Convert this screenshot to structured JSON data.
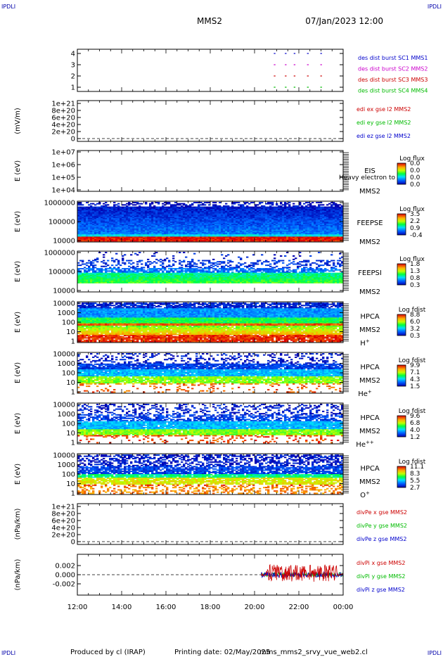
{
  "header": {
    "corner_left_top": "IPDLI",
    "corner_right_top": "IPDLI",
    "corner_left_bottom": "IPDLI",
    "corner_right_bottom": "IPDLI",
    "spacecraft": "MMS2",
    "datetime": "07/Jan/2023 12:00"
  },
  "footer": {
    "produced_by": "Produced by cl (IRAP)",
    "printing_date": "Printing date: 02/May/2025",
    "filename": "mms_mms2_srvy_vue_web2.cl"
  },
  "colors": {
    "blue": "#0000cc",
    "magenta": "#cc00cc",
    "red": "#cc0000",
    "green": "#00bb00"
  },
  "chart_data": {
    "type": "heatmap",
    "time_axis": {
      "range": [
        "12:00",
        "00:00"
      ],
      "tick_labels": [
        "12:00",
        "14:00",
        "16:00",
        "18:00",
        "20:00",
        "22:00",
        "00:00"
      ]
    },
    "panels": [
      {
        "id": "burst",
        "type": "scatter",
        "ylabel": "",
        "ylim": [
          0.5,
          4.5
        ],
        "tick_labels": [
          "4",
          "3",
          "2",
          "1"
        ],
        "legend": [
          {
            "name": "des dist burst SC1 MMS1",
            "color": "#0000cc"
          },
          {
            "name": "des dist burst SC2 MMS2",
            "color": "#cc00cc"
          },
          {
            "name": "des dist burst SC3 MMS3",
            "color": "#cc0000"
          },
          {
            "name": "des dist burst SC4 MMS4",
            "color": "#00bb00"
          }
        ],
        "burst_hours": [
          20.9,
          21.4,
          21.8,
          22.4,
          23.0
        ]
      },
      {
        "id": "edi",
        "type": "line",
        "ylabel": "(mV/m)",
        "ylim": [
          0,
          1e+21
        ],
        "tick_labels": [
          "1e+21",
          "8e+20",
          "6e+20",
          "4e+20",
          "2e+20",
          "0"
        ],
        "legend": [
          {
            "name": "edi ex gse l2 MMS2",
            "color": "#cc0000"
          },
          {
            "name": "edi ey gse l2 MMS2",
            "color": "#00bb00"
          },
          {
            "name": "edi ez gse l2 MMS2",
            "color": "#0000cc"
          }
        ]
      },
      {
        "id": "eis",
        "type": "heatmap",
        "ylabel": "E (eV)",
        "ylim": [
          10000.0,
          10000000.0
        ],
        "tick_labels": [
          "1e+07",
          "1e+06",
          "1e+05",
          "1e+04"
        ],
        "instrument": [
          "EIS",
          "MMS2"
        ],
        "species": "",
        "overlay_text": "Heavy electron to",
        "colorbar_title": "Log flux",
        "colorbar_ticks": [
          "0.0",
          "0.0",
          "0.0",
          "0.0"
        ]
      },
      {
        "id": "feepse",
        "type": "heatmap",
        "ylabel": "E (eV)",
        "ylim": [
          10000,
          1000000
        ],
        "tick_labels": [
          "1000000",
          "100000",
          "10000"
        ],
        "instrument": [
          "FEEPSE",
          "MMS2"
        ],
        "species": "",
        "colorbar_title": "Log flux",
        "colorbar_ticks": [
          "3.5",
          "2.2",
          "0.9",
          "-0.4"
        ]
      },
      {
        "id": "feepsi",
        "type": "heatmap",
        "ylabel": "E (eV)",
        "ylim": [
          10000,
          1000000
        ],
        "tick_labels": [
          "1000000",
          "100000",
          "10000"
        ],
        "instrument": [
          "FEEPSI",
          "MMS2"
        ],
        "species": "",
        "colorbar_title": "Log flux",
        "colorbar_ticks": [
          "1.8",
          "1.3",
          "0.8",
          "0.3"
        ]
      },
      {
        "id": "hpca_h",
        "type": "heatmap",
        "ylabel": "E (eV)",
        "ylim": [
          1,
          10000
        ],
        "tick_labels": [
          "10000",
          "1000",
          "100",
          "10",
          "1"
        ],
        "instrument": [
          "HPCA",
          "MMS2"
        ],
        "species": "H",
        "species_sup": "+",
        "colorbar_title": "Log fdist",
        "colorbar_ticks": [
          "8.8",
          "6.0",
          "3.2",
          "0.3"
        ]
      },
      {
        "id": "hpca_he",
        "type": "heatmap",
        "ylabel": "E (eV)",
        "ylim": [
          1,
          10000
        ],
        "tick_labels": [
          "10000",
          "1000",
          "100",
          "10",
          "1"
        ],
        "instrument": [
          "HPCA",
          "MMS2"
        ],
        "species": "He",
        "species_sup": "+",
        "colorbar_title": "Log fdist",
        "colorbar_ticks": [
          "9.9",
          "7.1",
          "4.3",
          "1.5"
        ]
      },
      {
        "id": "hpca_hepp",
        "type": "heatmap",
        "ylabel": "E (eV)",
        "ylim": [
          1,
          10000
        ],
        "tick_labels": [
          "10000",
          "1000",
          "100",
          "10",
          "1"
        ],
        "instrument": [
          "HPCA",
          "MMS2"
        ],
        "species": "He",
        "species_sup": "++",
        "colorbar_title": "Log fdist",
        "colorbar_ticks": [
          "9.6",
          "6.8",
          "4.0",
          "1.2"
        ]
      },
      {
        "id": "hpca_o",
        "type": "heatmap",
        "ylabel": "E (eV)",
        "ylim": [
          1,
          10000
        ],
        "tick_labels": [
          "10000",
          "1000",
          "100",
          "10",
          "1"
        ],
        "instrument": [
          "HPCA",
          "MMS2"
        ],
        "species": "O",
        "species_sup": "+",
        "colorbar_title": "Log fdist",
        "colorbar_ticks": [
          "11.1",
          "8.3",
          "5.5",
          "2.7"
        ]
      },
      {
        "id": "divpe",
        "type": "line",
        "ylabel": "(nPa/km)",
        "ylim": [
          0,
          1e+21
        ],
        "tick_labels": [
          "1e+21",
          "8e+20",
          "6e+20",
          "4e+20",
          "2e+20",
          "0"
        ],
        "legend": [
          {
            "name": "divPe x gse MMS2",
            "color": "#cc0000"
          },
          {
            "name": "divPe y gse MMS2",
            "color": "#00bb00"
          },
          {
            "name": "divPe z gse MMS2",
            "color": "#0000cc"
          }
        ]
      },
      {
        "id": "divpi",
        "type": "line",
        "ylabel": "(nPa/km)",
        "ylim": [
          -0.003,
          0.003
        ],
        "tick_labels": [
          "0.002",
          "0.000",
          "-0.002"
        ],
        "legend": [
          {
            "name": "divPi x gse MMS2",
            "color": "#cc0000"
          },
          {
            "name": "divPi y gse MMS2",
            "color": "#00bb00"
          },
          {
            "name": "divPi z gse MMS2",
            "color": "#0000cc"
          }
        ],
        "data_start_hour": 20.3
      }
    ]
  }
}
